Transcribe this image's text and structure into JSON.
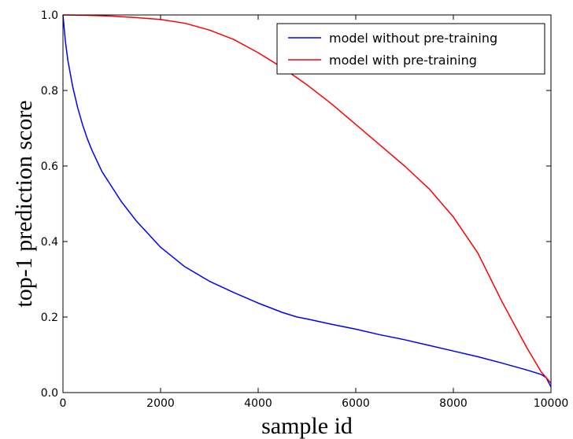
{
  "chart_data": {
    "type": "line",
    "title": "",
    "xlabel": "sample id",
    "ylabel": "top-1 prediction score",
    "xlim": [
      0,
      10000
    ],
    "ylim": [
      0.0,
      1.0
    ],
    "xticks": [
      0,
      2000,
      4000,
      6000,
      8000,
      10000
    ],
    "yticks": [
      0.0,
      0.2,
      0.4,
      0.6,
      0.8,
      1.0
    ],
    "xtick_labels": [
      "0",
      "2000",
      "4000",
      "6000",
      "8000",
      "10000"
    ],
    "ytick_labels": [
      "0.0",
      "0.2",
      "0.4",
      "0.6",
      "0.8",
      "1.0"
    ],
    "grid": false,
    "legend_position": "top-right",
    "series": [
      {
        "name": "model without pre-training",
        "color": "#0000ff",
        "x": [
          0,
          50,
          100,
          200,
          300,
          400,
          500,
          600,
          800,
          1000,
          1200,
          1500,
          2000,
          2500,
          3000,
          3500,
          4000,
          4500,
          4800,
          5000,
          5500,
          6000,
          6500,
          7000,
          7500,
          8000,
          8500,
          9000,
          9500,
          9800,
          9900,
          10000
        ],
        "y": [
          1.0,
          0.93,
          0.88,
          0.81,
          0.755,
          0.71,
          0.672,
          0.64,
          0.585,
          0.545,
          0.505,
          0.455,
          0.385,
          0.333,
          0.295,
          0.265,
          0.237,
          0.212,
          0.2,
          0.195,
          0.181,
          0.168,
          0.153,
          0.14,
          0.125,
          0.11,
          0.095,
          0.078,
          0.06,
          0.048,
          0.04,
          0.015
        ]
      },
      {
        "name": "model with pre-training",
        "color": "#ff0000",
        "x": [
          0,
          500,
          1000,
          1500,
          2000,
          2500,
          3000,
          3500,
          4000,
          4500,
          5000,
          5500,
          6000,
          6500,
          7000,
          7500,
          8000,
          8500,
          9000,
          9500,
          9800,
          10000
        ],
        "y": [
          1.0,
          0.999,
          0.997,
          0.993,
          0.988,
          0.978,
          0.96,
          0.935,
          0.9,
          0.86,
          0.815,
          0.765,
          0.71,
          0.655,
          0.6,
          0.54,
          0.465,
          0.37,
          0.24,
          0.12,
          0.055,
          0.025
        ]
      }
    ]
  }
}
